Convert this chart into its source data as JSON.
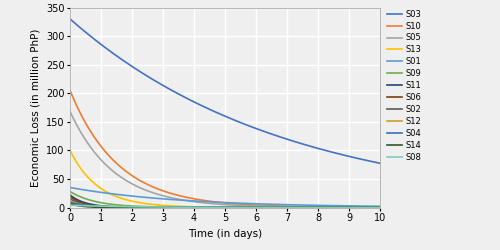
{
  "title": "",
  "xlabel": "Time (in days)",
  "ylabel": "Economic Loss (in million PhP)",
  "xlim": [
    0,
    10
  ],
  "ylim": [
    0,
    350
  ],
  "yticks": [
    0,
    50,
    100,
    150,
    200,
    250,
    300,
    350
  ],
  "xticks": [
    0,
    1,
    2,
    3,
    4,
    5,
    6,
    7,
    8,
    9,
    10
  ],
  "series": [
    {
      "label": "S03",
      "color": "#4472C4",
      "y0": 330,
      "decay": 0.145
    },
    {
      "label": "S10",
      "color": "#ED7D31",
      "y0": 205,
      "decay": 0.65
    },
    {
      "label": "S05",
      "color": "#A5A5A5",
      "y0": 168,
      "decay": 0.7
    },
    {
      "label": "S13",
      "color": "#FFC000",
      "y0": 100,
      "decay": 1.1
    },
    {
      "label": "S01",
      "color": "#5B9BD5",
      "y0": 35,
      "decay": 0.28
    },
    {
      "label": "S09",
      "color": "#70AD47",
      "y0": 28,
      "decay": 1.2
    },
    {
      "label": "S11",
      "color": "#264478",
      "y0": 22,
      "decay": 2.0
    },
    {
      "label": "S06",
      "color": "#843C0C",
      "y0": 20,
      "decay": 2.5
    },
    {
      "label": "S02",
      "color": "#595959",
      "y0": 16,
      "decay": 2.8
    },
    {
      "label": "S12",
      "color": "#C9A227",
      "y0": 12,
      "decay": 2.2
    },
    {
      "label": "S04",
      "color": "#2E75B6",
      "y0": 9,
      "decay": 1.6
    },
    {
      "label": "S14",
      "color": "#375623",
      "y0": 7,
      "decay": 3.0
    },
    {
      "label": "S08",
      "color": "#7FCDBB",
      "y0": 4,
      "decay": 0.55
    }
  ],
  "background_color": "#efefef",
  "grid_color": "#ffffff",
  "figsize": [
    5.0,
    2.5
  ],
  "dpi": 100,
  "legend_fontsize": 6.0,
  "axis_fontsize": 7.5,
  "tick_fontsize": 7.0,
  "linewidth": 1.2
}
